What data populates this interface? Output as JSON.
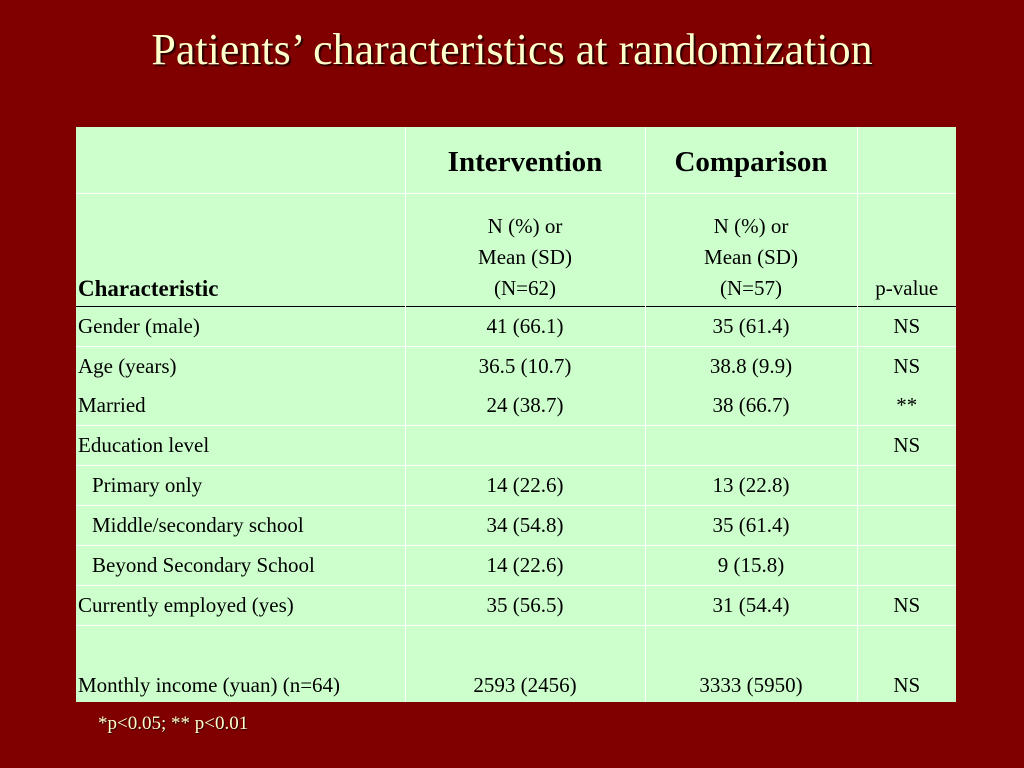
{
  "title": "Patients’ characteristics at randomization",
  "columns": {
    "intervention": "Intervention",
    "comparison": "Comparison",
    "characteristic": "Characteristic",
    "pvalue": "p-value",
    "intervention_sub": [
      "N (%) or",
      "Mean (SD)",
      "(N=62)"
    ],
    "comparison_sub": [
      "N (%) or",
      "Mean (SD)",
      "(N=57)"
    ]
  },
  "rows": [
    {
      "label": "Gender (male)",
      "intervention": "41 (66.1)",
      "comparison": "35 (61.4)",
      "pvalue": "NS"
    },
    {
      "label": "Age (years)",
      "intervention": "36.5 (10.7)",
      "comparison": "38.8 (9.9)",
      "pvalue": "NS"
    },
    {
      "label": "Married",
      "intervention": "24 (38.7)",
      "comparison": "38 (66.7)",
      "pvalue": "**"
    },
    {
      "label": "Education level",
      "intervention": "",
      "comparison": "",
      "pvalue": "NS"
    },
    {
      "label": "Primary only",
      "intervention": "14 (22.6)",
      "comparison": "13 (22.8)",
      "pvalue": ""
    },
    {
      "label": "Middle/secondary school",
      "intervention": "34 (54.8)",
      "comparison": "35 (61.4)",
      "pvalue": ""
    },
    {
      "label": "Beyond Secondary School",
      "intervention": "14 (22.6)",
      "comparison": "9 (15.8)",
      "pvalue": ""
    },
    {
      "label": "Currently employed (yes)",
      "intervention": "35 (56.5)",
      "comparison": "31 (54.4)",
      "pvalue": "NS"
    },
    {
      "label": "Monthly income (yuan) (n=64)",
      "intervention": "2593 (2456)",
      "comparison": "3333 (5950)",
      "pvalue": "NS"
    }
  ],
  "footnote": "*p<0.05; ** p<0.01"
}
